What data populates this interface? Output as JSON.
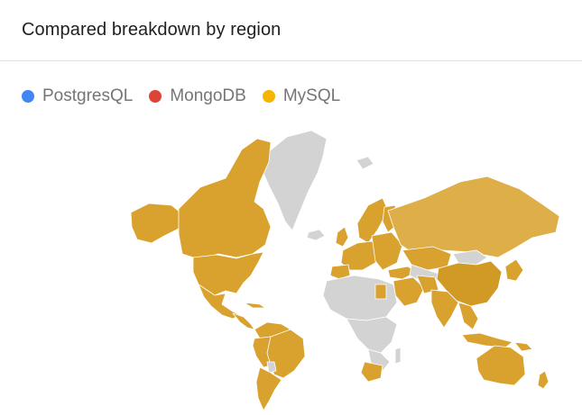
{
  "card": {
    "title": "Compared breakdown by region"
  },
  "legend": {
    "items": [
      {
        "label": "PostgresQL",
        "color": "#4285f4"
      },
      {
        "label": "MongoDB",
        "color": "#db4437"
      },
      {
        "label": "MySQL",
        "color": "#f4b400"
      }
    ]
  },
  "map": {
    "colors": {
      "mysql_fill": "#d9a22e",
      "no_data_fill": "#d3d3d3",
      "border": "#ffffff"
    }
  }
}
